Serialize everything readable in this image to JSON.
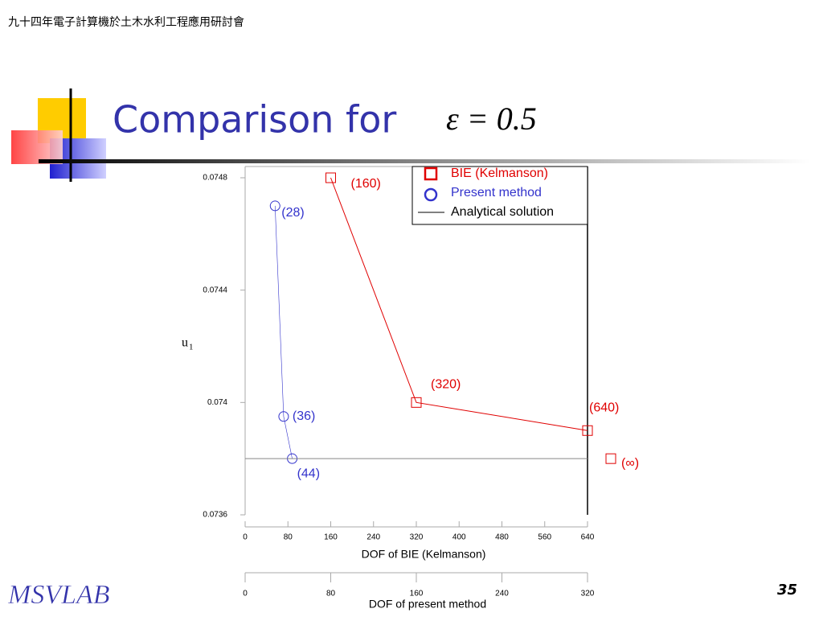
{
  "header": {
    "conference": "九十四年電子計算機於土木水利工程應用研討會"
  },
  "slide": {
    "title": "Comparison for",
    "equation": "ε = 0.5",
    "logo": "MSVLAB",
    "page_number": "35"
  },
  "chart_data": {
    "type": "line",
    "y_label_main": "u",
    "y_label_sub": "1",
    "xlabel": "DOF of BIE (Kelmanson)",
    "x2label": "DOF of present method",
    "xlim": [
      0,
      640
    ],
    "xticks": [
      0,
      80,
      160,
      240,
      320,
      400,
      480,
      560,
      640
    ],
    "x2lim": [
      0,
      320
    ],
    "x2ticks": [
      0,
      80,
      160,
      240,
      320
    ],
    "ylim": [
      0.0736,
      0.0748
    ],
    "yticks": [
      0.0736,
      0.074,
      0.0744,
      0.0748
    ],
    "series": [
      {
        "name": "BIE (Kelmanson)",
        "color": "#e00000",
        "marker": "square",
        "axis": "x",
        "x": [
          160,
          320,
          640
        ],
        "values": [
          0.0748,
          0.074,
          0.0739
        ],
        "point_labels": [
          "(160)",
          "(320)",
          "(640)"
        ]
      },
      {
        "name": "Present method",
        "color": "#3333cc",
        "marker": "circle",
        "axis": "x2",
        "x": [
          28,
          36,
          44
        ],
        "values": [
          0.0747,
          0.07395,
          0.0738
        ],
        "point_labels": [
          "(28)",
          "(36)",
          "(44)"
        ]
      },
      {
        "name": "Analytical solution",
        "color": "#888888",
        "marker": "line",
        "values": [
          0.0738
        ]
      }
    ],
    "limit_point": {
      "label": "(∞)",
      "value": 0.0738,
      "color": "#e00000"
    }
  }
}
